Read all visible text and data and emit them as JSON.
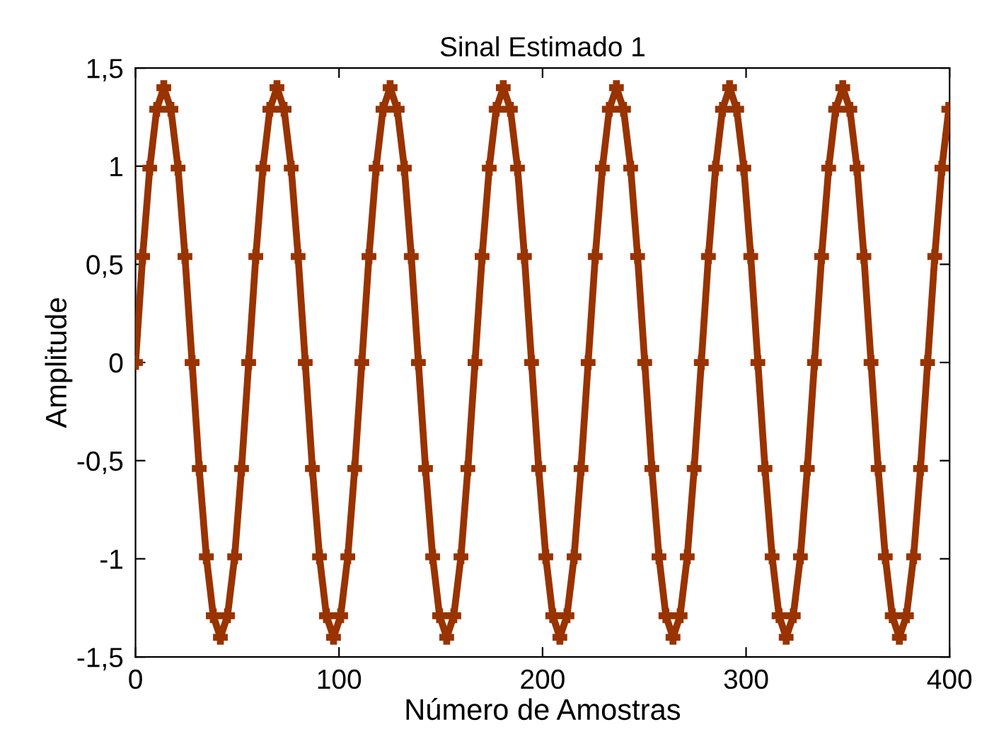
{
  "chart_data": {
    "type": "line",
    "title": "Sinal Estimado 1",
    "xlabel": "Número de Amostras",
    "ylabel": "Amplitude",
    "x": [
      0,
      3.5,
      7.0,
      10.4,
      13.9,
      17.4,
      20.9,
      24.3,
      27.8,
      31.3,
      34.8,
      38.2,
      41.7,
      45.2,
      48.7,
      52.1,
      55.6,
      59.1,
      62.6,
      66.0,
      69.5,
      73.0,
      76.5,
      79.9,
      83.4,
      86.9,
      90.4,
      93.8,
      97.3,
      100.8,
      104.3,
      107.7,
      111.2,
      114.7,
      118.2,
      121.6,
      125.1,
      128.6,
      132.1,
      135.5,
      139.0,
      142.5,
      146.0,
      149.4,
      152.9,
      156.4,
      159.9,
      163.3,
      166.8,
      170.3,
      173.8,
      177.2,
      180.7,
      184.2,
      187.7,
      191.1,
      194.6,
      198.1,
      201.6,
      205.0,
      208.5,
      212.0,
      215.5,
      218.9,
      222.4,
      225.9,
      229.4,
      232.8,
      236.3,
      239.8,
      243.3,
      246.7,
      250.2,
      253.7,
      257.2,
      260.6,
      264.1,
      267.6,
      271.1,
      274.5,
      278.0,
      281.5,
      285.0,
      288.4,
      291.9,
      295.4,
      298.9,
      302.3,
      305.8,
      309.3,
      312.8,
      316.2,
      319.7,
      323.2,
      326.7,
      330.1,
      333.6,
      337.1,
      340.6,
      344.0,
      347.5,
      351.0,
      354.5,
      357.9,
      361.4,
      364.9,
      368.4,
      371.8,
      375.3,
      378.8,
      382.3,
      385.7,
      389.2,
      392.7,
      396.2,
      399.6
    ],
    "series": [
      {
        "color": "#993300",
        "values": [
          0,
          0.54,
          0.99,
          1.29,
          1.4,
          1.29,
          0.99,
          0.54,
          0,
          -0.54,
          -0.99,
          -1.29,
          -1.4,
          -1.29,
          -0.99,
          -0.54,
          0,
          0.54,
          0.99,
          1.29,
          1.4,
          1.29,
          0.99,
          0.54,
          0,
          -0.54,
          -0.99,
          -1.29,
          -1.4,
          -1.29,
          -0.99,
          -0.54,
          0,
          0.54,
          0.99,
          1.29,
          1.4,
          1.29,
          0.99,
          0.54,
          0,
          -0.54,
          -0.99,
          -1.29,
          -1.4,
          -1.29,
          -0.99,
          -0.54,
          0,
          0.54,
          0.99,
          1.29,
          1.4,
          1.29,
          0.99,
          0.54,
          0,
          -0.54,
          -0.99,
          -1.29,
          -1.4,
          -1.29,
          -0.99,
          -0.54,
          0,
          0.54,
          0.99,
          1.29,
          1.4,
          1.29,
          0.99,
          0.54,
          0,
          -0.54,
          -0.99,
          -1.29,
          -1.4,
          -1.29,
          -0.99,
          -0.54,
          0,
          0.54,
          0.99,
          1.29,
          1.4,
          1.29,
          0.99,
          0.54,
          0,
          -0.54,
          -0.99,
          -1.29,
          -1.4,
          -1.29,
          -0.99,
          -0.54,
          0,
          0.54,
          0.99,
          1.29,
          1.4,
          1.29,
          0.99,
          0.54,
          0,
          -0.54,
          -0.99,
          -1.29,
          -1.4,
          -1.29,
          -0.99,
          -0.54,
          0,
          0.54,
          0.99,
          1.29
        ]
      }
    ],
    "xlim": [
      0,
      400
    ],
    "xticks": [
      0,
      100,
      200,
      300,
      400
    ],
    "ylim": [
      -1.5,
      1.5
    ],
    "yticks": [
      {
        "value": -1.5,
        "label": "-1,5"
      },
      {
        "value": -1,
        "label": "-1"
      },
      {
        "value": -0.5,
        "label": "-0,5"
      },
      0,
      {
        "value": 0.5,
        "label": "0,5"
      },
      1,
      {
        "value": 1.5,
        "label": "1,5"
      }
    ],
    "marker": "cross",
    "line_style": "solid",
    "grid": false
  }
}
